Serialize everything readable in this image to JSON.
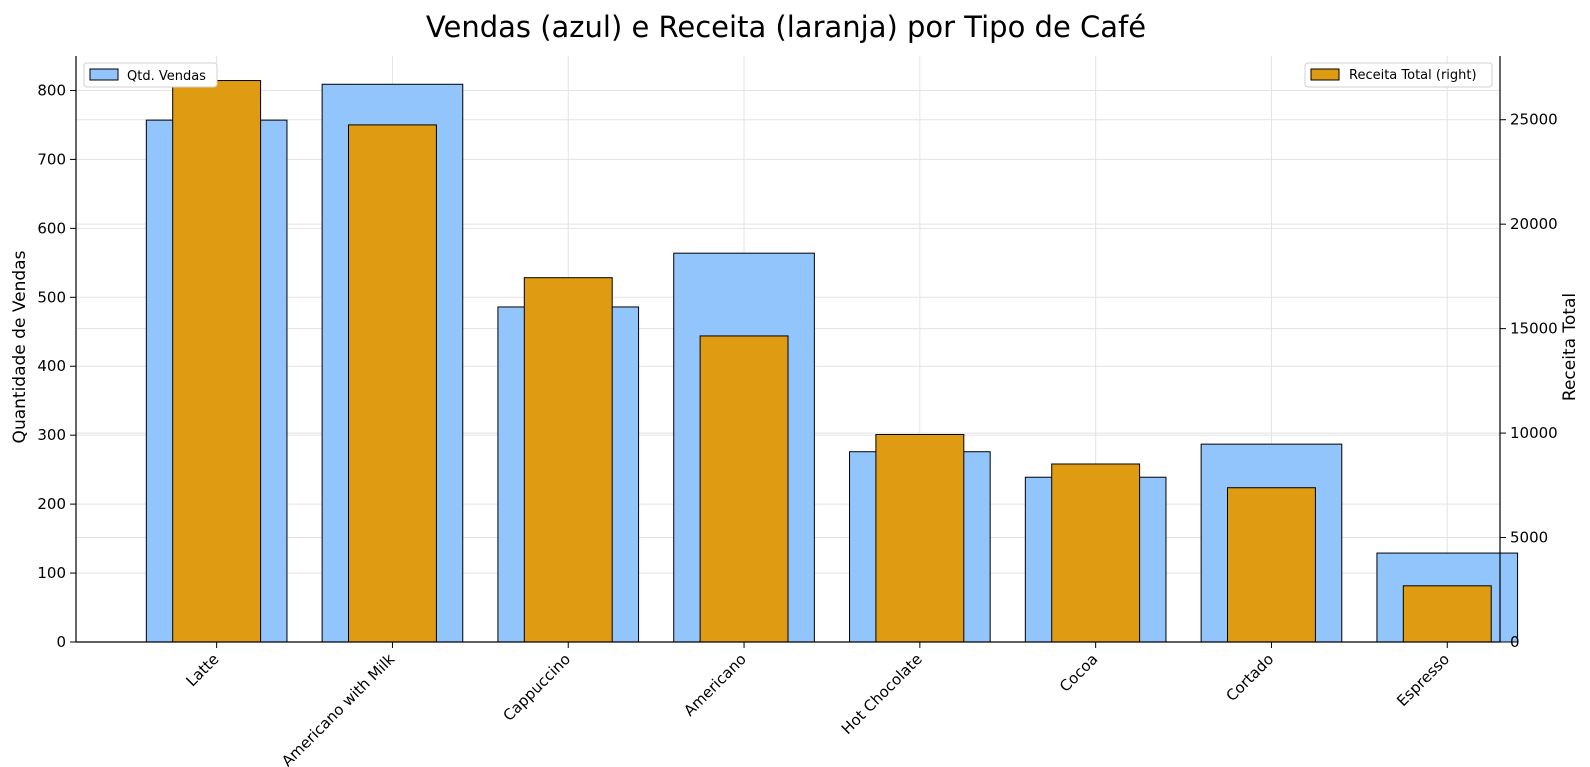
{
  "chart_data": {
    "type": "bar",
    "title": "Vendas (azul) e Receita (laranja) por Tipo de Café",
    "categories": [
      "Latte",
      "Americano with Milk",
      "Cappuccino",
      "Americano",
      "Hot Chocolate",
      "Cocoa",
      "Cortado",
      "Espresso"
    ],
    "series": [
      {
        "name": "Qtd. Vendas",
        "axis": "left",
        "color": "#93c5fd",
        "values": [
          757,
          809,
          486,
          564,
          276,
          239,
          287,
          129
        ]
      },
      {
        "name": "Receita Total (right)",
        "axis": "right",
        "color": "#df9b12",
        "values": [
          26875,
          24752,
          17439,
          14650,
          9933,
          8521,
          7385,
          2690
        ]
      }
    ],
    "ylabel": "Quantidade de Vendas",
    "y2label": "Receita Total",
    "ylim": [
      0,
      850
    ],
    "y2lim": [
      0,
      28050
    ],
    "yticks": [
      0,
      100,
      200,
      300,
      400,
      500,
      600,
      700,
      800
    ],
    "y2ticks": [
      0,
      5000,
      10000,
      15000,
      20000,
      25000
    ],
    "grid": true,
    "legend_left_placement": "upper-left",
    "legend_right_placement": "upper-right",
    "edge_color": "#000000",
    "grid_color": "#e3e3e3"
  }
}
